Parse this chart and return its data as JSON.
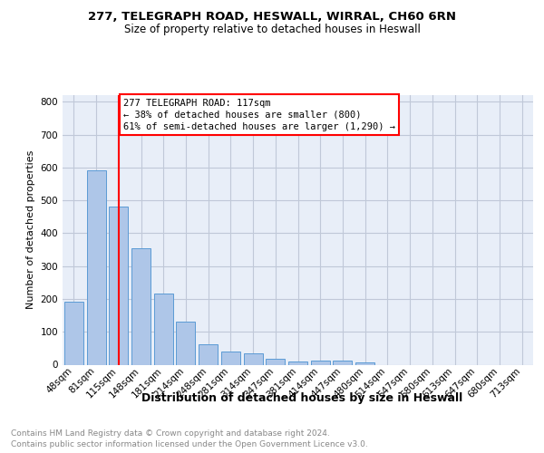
{
  "title1": "277, TELEGRAPH ROAD, HESWALL, WIRRAL, CH60 6RN",
  "title2": "Size of property relative to detached houses in Heswall",
  "xlabel": "Distribution of detached houses by size in Heswall",
  "ylabel": "Number of detached properties",
  "categories": [
    "48sqm",
    "81sqm",
    "115sqm",
    "148sqm",
    "181sqm",
    "214sqm",
    "248sqm",
    "281sqm",
    "314sqm",
    "347sqm",
    "381sqm",
    "414sqm",
    "447sqm",
    "480sqm",
    "514sqm",
    "547sqm",
    "580sqm",
    "613sqm",
    "647sqm",
    "680sqm",
    "713sqm"
  ],
  "values": [
    192,
    590,
    480,
    355,
    215,
    130,
    62,
    40,
    35,
    18,
    10,
    12,
    13,
    8,
    0,
    0,
    0,
    0,
    0,
    0,
    0
  ],
  "bar_color": "#aec6e8",
  "bar_edge_color": "#5b9bd5",
  "red_line_index": 2,
  "annotation_line1": "277 TELEGRAPH ROAD: 117sqm",
  "annotation_line2": "← 38% of detached houses are smaller (800)",
  "annotation_line3": "61% of semi-detached houses are larger (1,290) →",
  "ylim": [
    0,
    820
  ],
  "yticks": [
    0,
    100,
    200,
    300,
    400,
    500,
    600,
    700,
    800
  ],
  "footer1": "Contains HM Land Registry data © Crown copyright and database right 2024.",
  "footer2": "Contains public sector information licensed under the Open Government Licence v3.0.",
  "background_color": "#ffffff",
  "grid_color": "#c0c8d8",
  "plot_bg_color": "#e8eef8",
  "title1_fontsize": 9.5,
  "title2_fontsize": 8.5,
  "ylabel_fontsize": 8,
  "xlabel_fontsize": 9,
  "tick_fontsize": 7.5,
  "ann_fontsize": 7.5,
  "footer_fontsize": 6.5,
  "footer_color": "#888888"
}
